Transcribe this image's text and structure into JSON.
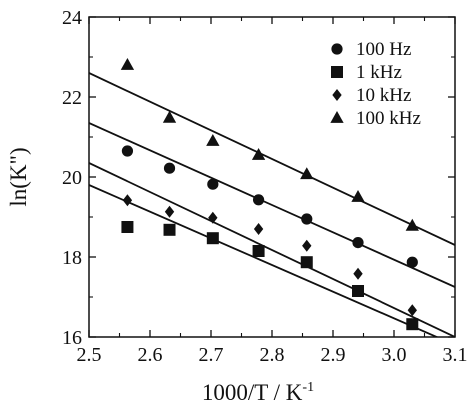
{
  "chart_data": {
    "type": "scatter",
    "xlabel": "1000/T / K",
    "xlabel_superscript": "-1",
    "ylabel": "ln(K\")",
    "xlim": [
      2.5,
      3.1
    ],
    "ylim": [
      16,
      24
    ],
    "xticks": [
      2.5,
      2.6,
      2.7,
      2.8,
      2.9,
      3.0,
      3.1
    ],
    "yticks": [
      16,
      18,
      20,
      22,
      24
    ],
    "xtick_labels": [
      "2.5",
      "2.6",
      "2.7",
      "2.8",
      "2.9",
      "3.0",
      "3.1"
    ],
    "ytick_labels": [
      "16",
      "18",
      "20",
      "22",
      "24"
    ],
    "grid": false,
    "legend_position": "top-right",
    "series": [
      {
        "name": "100 Hz",
        "marker": "circle",
        "x": [
          2.563,
          2.632,
          2.703,
          2.778,
          2.857,
          2.941,
          3.03
        ],
        "y": [
          20.65,
          20.22,
          19.82,
          19.43,
          18.95,
          18.36,
          17.87
        ],
        "fit": {
          "x": [
            2.5,
            3.1
          ],
          "y": [
            21.35,
            17.25
          ]
        }
      },
      {
        "name": "1 kHz",
        "marker": "square",
        "x": [
          2.563,
          2.632,
          2.703,
          2.778,
          2.857,
          2.941,
          3.03
        ],
        "y": [
          18.75,
          18.68,
          18.47,
          18.15,
          17.87,
          17.15,
          16.32
        ],
        "fit": {
          "x": [
            2.5,
            3.1
          ],
          "y": [
            19.8,
            15.8
          ]
        }
      },
      {
        "name": "10 kHz",
        "marker": "diamond",
        "x": [
          2.563,
          2.632,
          2.703,
          2.778,
          2.857,
          2.941,
          3.03
        ],
        "y": [
          19.42,
          19.13,
          18.98,
          18.7,
          18.28,
          17.58,
          16.67
        ],
        "fit": {
          "x": [
            2.5,
            3.1
          ],
          "y": [
            20.35,
            16.0
          ]
        }
      },
      {
        "name": "100 kHz",
        "marker": "triangle",
        "x": [
          2.563,
          2.632,
          2.703,
          2.778,
          2.857,
          2.941,
          3.03
        ],
        "y": [
          22.8,
          21.48,
          20.9,
          20.55,
          20.07,
          19.5,
          18.78
        ],
        "fit": {
          "x": [
            2.5,
            3.1
          ],
          "y": [
            22.6,
            18.3
          ]
        }
      }
    ]
  }
}
